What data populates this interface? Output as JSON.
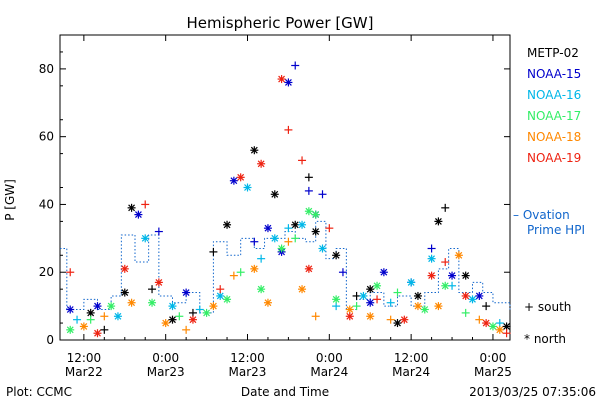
{
  "chart_data": {
    "type": "scatter",
    "title": "Hemispheric Power [GW]",
    "xlabel": "Date and Time",
    "ylabel": "P [GW]",
    "xlim_hours": [
      -15.5,
      50.5
    ],
    "ylim": [
      0,
      90
    ],
    "yticks": [
      0,
      20,
      40,
      60,
      80
    ],
    "xticks": [
      {
        "h": -12,
        "label1": "12:00",
        "label2": "Mar22"
      },
      {
        "h": 0,
        "label1": "0:00",
        "label2": "Mar23"
      },
      {
        "h": 12,
        "label1": "12:00",
        "label2": "Mar23"
      },
      {
        "h": 24,
        "label1": "0:00",
        "label2": "Mar24"
      },
      {
        "h": 36,
        "label1": "12:00",
        "label2": "Mar24"
      },
      {
        "h": 48,
        "label1": "0:00",
        "label2": "Mar25"
      }
    ],
    "series": [
      {
        "name": "METP-02",
        "color": "#000000",
        "points": [
          [
            -11,
            8,
            "x"
          ],
          [
            -9,
            3,
            "+"
          ],
          [
            -6,
            14,
            "x"
          ],
          [
            -5,
            39,
            "x"
          ],
          [
            -2,
            15,
            "+"
          ],
          [
            1,
            6,
            "x"
          ],
          [
            4,
            8,
            "+"
          ],
          [
            7,
            26,
            "+"
          ],
          [
            9,
            34,
            "x"
          ],
          [
            13,
            56,
            "x"
          ],
          [
            16,
            43,
            "x"
          ],
          [
            19,
            34,
            "x"
          ],
          [
            21,
            48,
            "+"
          ],
          [
            22,
            32,
            "x"
          ],
          [
            25,
            25,
            "x"
          ],
          [
            28,
            13,
            "+"
          ],
          [
            30,
            15,
            "x"
          ],
          [
            34,
            5,
            "x"
          ],
          [
            37,
            13,
            "x"
          ],
          [
            40,
            35,
            "x"
          ],
          [
            41,
            39,
            "+"
          ],
          [
            44,
            19,
            "x"
          ],
          [
            47,
            10,
            "+"
          ],
          [
            50,
            4,
            "x"
          ]
        ]
      },
      {
        "name": "NOAA-15",
        "color": "#0000cc",
        "points": [
          [
            -14,
            9,
            "x"
          ],
          [
            -10,
            10,
            "x"
          ],
          [
            -4,
            37,
            "x"
          ],
          [
            -1,
            32,
            "+"
          ],
          [
            3,
            14,
            "x"
          ],
          [
            10,
            47,
            "x"
          ],
          [
            13,
            29,
            "+"
          ],
          [
            15,
            33,
            "x"
          ],
          [
            17,
            26,
            "x"
          ],
          [
            18,
            76,
            "x"
          ],
          [
            19,
            81,
            "+"
          ],
          [
            21,
            44,
            "+"
          ],
          [
            22,
            37,
            "x"
          ],
          [
            23,
            43,
            "+"
          ],
          [
            26,
            20,
            "+"
          ],
          [
            30,
            11,
            "x"
          ],
          [
            32,
            20,
            "x"
          ],
          [
            36,
            17,
            "+"
          ],
          [
            39,
            27,
            "+"
          ],
          [
            42,
            19,
            "x"
          ],
          [
            46,
            13,
            "x"
          ]
        ]
      },
      {
        "name": "NOAA-16",
        "color": "#00b7e8",
        "points": [
          [
            -13,
            6,
            "+"
          ],
          [
            -7,
            7,
            "x"
          ],
          [
            -3,
            30,
            "x"
          ],
          [
            1,
            10,
            "x"
          ],
          [
            5,
            9,
            "+"
          ],
          [
            8,
            13,
            "x"
          ],
          [
            12,
            45,
            "x"
          ],
          [
            14,
            24,
            "+"
          ],
          [
            16,
            30,
            "x"
          ],
          [
            18,
            33,
            "+"
          ],
          [
            20,
            34,
            "x"
          ],
          [
            23,
            27,
            "x"
          ],
          [
            25,
            10,
            "+"
          ],
          [
            29,
            13,
            "x"
          ],
          [
            33,
            11,
            "+"
          ],
          [
            36,
            17,
            "x"
          ],
          [
            39,
            24,
            "x"
          ],
          [
            42,
            16,
            "+"
          ],
          [
            45,
            12,
            "x"
          ],
          [
            49,
            5,
            "+"
          ]
        ]
      },
      {
        "name": "NOAA-17",
        "color": "#33ee66",
        "points": [
          [
            -14,
            3,
            "x"
          ],
          [
            -11,
            6,
            "+"
          ],
          [
            -8,
            10,
            "x"
          ],
          [
            -2,
            11,
            "x"
          ],
          [
            2,
            7,
            "+"
          ],
          [
            6,
            8,
            "x"
          ],
          [
            9,
            12,
            "x"
          ],
          [
            11,
            20,
            "+"
          ],
          [
            14,
            15,
            "x"
          ],
          [
            17,
            27,
            "x"
          ],
          [
            19,
            30,
            "+"
          ],
          [
            21,
            38,
            "x"
          ],
          [
            22,
            37,
            "x"
          ],
          [
            25,
            12,
            "x"
          ],
          [
            28,
            10,
            "+"
          ],
          [
            31,
            16,
            "x"
          ],
          [
            34,
            14,
            "+"
          ],
          [
            38,
            9,
            "x"
          ],
          [
            41,
            16,
            "x"
          ],
          [
            44,
            8,
            "+"
          ],
          [
            48,
            4,
            "x"
          ]
        ]
      },
      {
        "name": "NOAA-18",
        "color": "#ff8800",
        "points": [
          [
            -12,
            4,
            "x"
          ],
          [
            -9,
            7,
            "+"
          ],
          [
            -5,
            11,
            "x"
          ],
          [
            0,
            5,
            "x"
          ],
          [
            3,
            3,
            "+"
          ],
          [
            7,
            10,
            "x"
          ],
          [
            10,
            19,
            "+"
          ],
          [
            13,
            21,
            "x"
          ],
          [
            15,
            11,
            "x"
          ],
          [
            18,
            29,
            "+"
          ],
          [
            20,
            15,
            "x"
          ],
          [
            22,
            7,
            "+"
          ],
          [
            27,
            9,
            "x"
          ],
          [
            30,
            7,
            "x"
          ],
          [
            33,
            6,
            "+"
          ],
          [
            37,
            10,
            "x"
          ],
          [
            40,
            10,
            "x"
          ],
          [
            43,
            25,
            "x"
          ],
          [
            46,
            6,
            "+"
          ],
          [
            49,
            3,
            "x"
          ]
        ]
      },
      {
        "name": "NOAA-19",
        "color": "#ee2211",
        "points": [
          [
            -14,
            20,
            "+"
          ],
          [
            -10,
            2,
            "x"
          ],
          [
            -6,
            21,
            "x"
          ],
          [
            -3,
            40,
            "+"
          ],
          [
            -1,
            17,
            "x"
          ],
          [
            4,
            6,
            "x"
          ],
          [
            8,
            15,
            "+"
          ],
          [
            11,
            48,
            "x"
          ],
          [
            14,
            52,
            "x"
          ],
          [
            17,
            77,
            "x"
          ],
          [
            18,
            62,
            "+"
          ],
          [
            20,
            53,
            "+"
          ],
          [
            21,
            21,
            "x"
          ],
          [
            24,
            33,
            "+"
          ],
          [
            27,
            7,
            "x"
          ],
          [
            31,
            12,
            "+"
          ],
          [
            35,
            6,
            "x"
          ],
          [
            39,
            19,
            "x"
          ],
          [
            41,
            23,
            "+"
          ],
          [
            44,
            13,
            "x"
          ],
          [
            47,
            5,
            "x"
          ],
          [
            50,
            2,
            "+"
          ]
        ]
      }
    ],
    "ovation": {
      "name": "– Ovation Prime HPI",
      "color": "#1166cc",
      "steps": [
        [
          -15.5,
          27
        ],
        [
          -14.5,
          9
        ],
        [
          -12,
          12
        ],
        [
          -10,
          9
        ],
        [
          -8,
          13
        ],
        [
          -6.5,
          31
        ],
        [
          -4.5,
          23
        ],
        [
          -2.5,
          31
        ],
        [
          -1,
          13
        ],
        [
          1,
          11
        ],
        [
          3,
          14
        ],
        [
          5,
          8
        ],
        [
          7,
          29
        ],
        [
          9,
          25
        ],
        [
          11,
          30
        ],
        [
          13,
          27
        ],
        [
          14.5,
          30
        ],
        [
          16,
          30
        ],
        [
          17.5,
          32
        ],
        [
          19,
          30
        ],
        [
          20.5,
          29
        ],
        [
          22,
          35
        ],
        [
          23.5,
          24
        ],
        [
          25,
          27
        ],
        [
          26.5,
          9
        ],
        [
          28,
          12
        ],
        [
          30,
          14
        ],
        [
          32,
          10
        ],
        [
          34,
          13
        ],
        [
          36,
          10
        ],
        [
          38,
          14
        ],
        [
          40,
          21
        ],
        [
          41.5,
          27
        ],
        [
          43,
          14
        ],
        [
          45,
          17
        ],
        [
          46.5,
          14
        ],
        [
          48,
          11
        ],
        [
          50.5,
          9
        ]
      ]
    },
    "legend_south": "+ south",
    "legend_north": "* north"
  },
  "footer": {
    "left": "Plot: CCMC",
    "right": "2013/03/25 07:35:06"
  }
}
